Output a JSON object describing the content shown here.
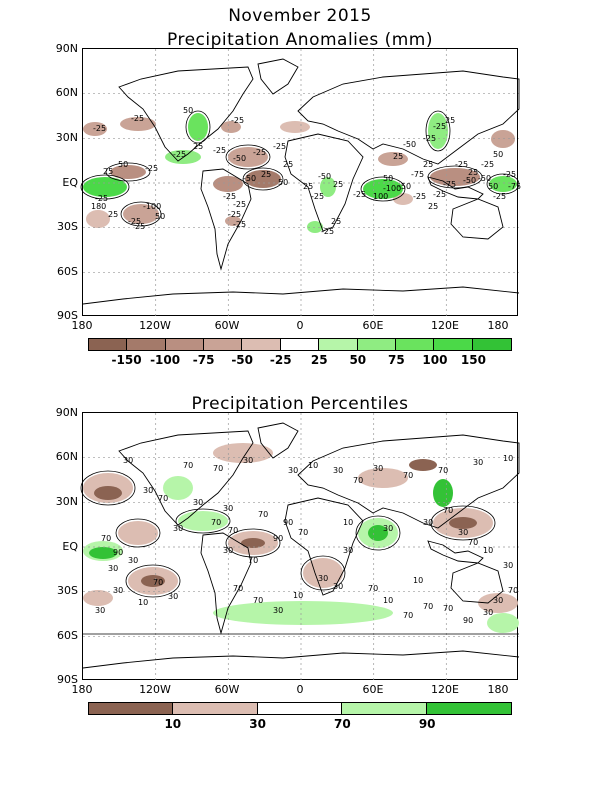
{
  "main_title": "November 2015",
  "panels": [
    {
      "title": "Precipitation Anomalies (mm)",
      "lat_labels": [
        "90N",
        "60N",
        "30N",
        "EQ",
        "30S",
        "60S",
        "90S"
      ],
      "lon_labels": [
        "180",
        "120W",
        "60W",
        "0",
        "60E",
        "120E",
        "180"
      ],
      "contour_labels": [
        "-25",
        "-25",
        "50",
        "-25",
        "25",
        "50",
        "-25",
        "-25",
        "25",
        "-25",
        "-50",
        "-25",
        "-25",
        "25",
        "-50",
        "25",
        "50",
        "-25",
        "-100",
        "50",
        "-25",
        "25",
        "-25",
        "-25",
        "25",
        "-50",
        "25",
        "-25",
        "-25",
        "50",
        "25",
        "-50",
        "-25",
        "-25",
        "25",
        "-25",
        "25",
        "-50",
        "50",
        "-100",
        "-75",
        "-50",
        "-25",
        "50",
        "-25",
        "-75",
        "-25",
        "-25",
        "25",
        "-25",
        "180",
        "25",
        "-25",
        "-25",
        "25",
        "100",
        "-50",
        "-75",
        "25",
        "-25"
      ],
      "colorbar": {
        "colors": [
          "#8b6352",
          "#a47a6a",
          "#b98f81",
          "#c9a396",
          "#dcbdb2",
          "#ffffff",
          "#b6f5a9",
          "#8fec82",
          "#6ae35e",
          "#4bd948",
          "#33c236"
        ],
        "labels": [
          "-150",
          "-100",
          "-75",
          "-50",
          "-25",
          "25",
          "50",
          "75",
          "100",
          "150"
        ]
      }
    },
    {
      "title": "Precipitation Percentiles",
      "lat_labels": [
        "90N",
        "60N",
        "30N",
        "EQ",
        "30S",
        "60S",
        "90S"
      ],
      "lon_labels": [
        "180",
        "120W",
        "60W",
        "0",
        "60E",
        "120E",
        "180"
      ],
      "contour_labels": [
        "30",
        "70",
        "70",
        "30",
        "30",
        "10",
        "30",
        "70",
        "30",
        "70",
        "70",
        "30",
        "10",
        "30",
        "70",
        "30",
        "30",
        "70",
        "90",
        "30",
        "70",
        "70",
        "90",
        "70",
        "10",
        "30",
        "30",
        "70",
        "30",
        "70",
        "10",
        "30",
        "90",
        "30",
        "30",
        "70",
        "30",
        "10",
        "30",
        "70",
        "70",
        "30",
        "10",
        "30",
        "30",
        "70",
        "10",
        "70",
        "70",
        "70",
        "90",
        "30",
        "30",
        "70",
        "30",
        "70",
        "30",
        "70",
        "30",
        "10"
      ],
      "colorbar": {
        "colors": [
          "#8b6352",
          "#dcbdb2",
          "#ffffff",
          "#b6f5a9",
          "#33c236"
        ],
        "labels": [
          "10",
          "30",
          "70",
          "90"
        ]
      }
    }
  ]
}
